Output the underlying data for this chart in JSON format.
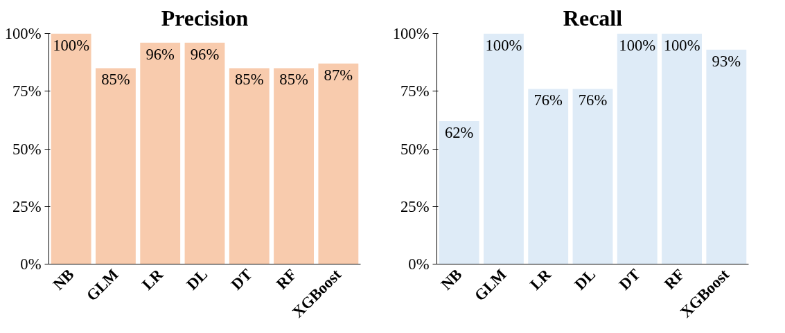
{
  "chart_data": [
    {
      "type": "bar",
      "title": "Precision",
      "categories": [
        "NB",
        "GLM",
        "LR",
        "DL",
        "DT",
        "RF",
        "XGBoost"
      ],
      "values": [
        100,
        85,
        96,
        96,
        85,
        85,
        87
      ],
      "color": "#f8cbad",
      "value_labels": [
        "100%",
        "85%",
        "96%",
        "96%",
        "85%",
        "85%",
        "87%"
      ],
      "ylim": [
        0,
        100
      ],
      "yticks": [
        {
          "value": 0,
          "label": "0%"
        },
        {
          "value": 25,
          "label": "25%"
        },
        {
          "value": 50,
          "label": "50%"
        },
        {
          "value": 75,
          "label": "75%"
        },
        {
          "value": 100,
          "label": "100%"
        }
      ],
      "grid": false
    },
    {
      "type": "bar",
      "title": "Recall",
      "categories": [
        "NB",
        "GLM",
        "LR",
        "DL",
        "DT",
        "RF",
        "XGBoost"
      ],
      "values": [
        62,
        100,
        76,
        76,
        100,
        100,
        93
      ],
      "color": "#deebf7",
      "value_labels": [
        "62%",
        "100%",
        "76%",
        "76%",
        "100%",
        "100%",
        "93%"
      ],
      "ylim": [
        0,
        100
      ],
      "yticks": [
        {
          "value": 0,
          "label": "0%"
        },
        {
          "value": 25,
          "label": "25%"
        },
        {
          "value": 50,
          "label": "50%"
        },
        {
          "value": 75,
          "label": "75%"
        },
        {
          "value": 100,
          "label": "100%"
        }
      ],
      "grid": false
    }
  ]
}
